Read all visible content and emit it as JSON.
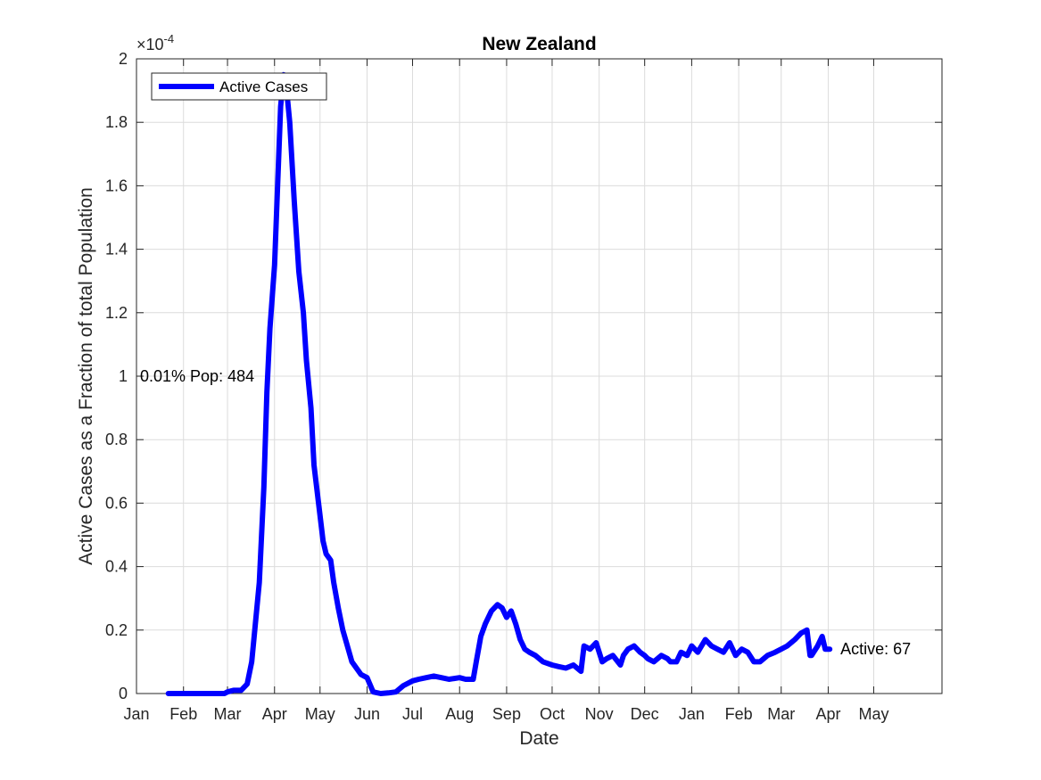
{
  "chart_data": {
    "type": "line",
    "title": "New Zealand",
    "xlabel": "Date",
    "ylabel": "Active Cases as a Fraction of total Population",
    "y_exponent_label": "×10",
    "y_exponent": "-4",
    "ylim": [
      0,
      2
    ],
    "yticks": [
      "0",
      "0.2",
      "0.4",
      "0.6",
      "0.8",
      "1",
      "1.2",
      "1.4",
      "1.6",
      "1.8",
      "2"
    ],
    "xticks": [
      "Jan",
      "Feb",
      "Mar",
      "Apr",
      "May",
      "Jun",
      "Jul",
      "Aug",
      "Sep",
      "Oct",
      "Nov",
      "Dec",
      "Jan",
      "Feb",
      "Mar",
      "Apr",
      "May"
    ],
    "xlim": [
      "2020-01-01",
      "2021-06-15"
    ],
    "grid": true,
    "legend_position": "top-left",
    "color": "#0000ff",
    "series": [
      {
        "name": "Active Cases",
        "x": [
          "2020-01-22",
          "2020-02-01",
          "2020-02-15",
          "2020-02-28",
          "2020-03-01",
          "2020-03-05",
          "2020-03-10",
          "2020-03-14",
          "2020-03-17",
          "2020-03-19",
          "2020-03-22",
          "2020-03-25",
          "2020-03-27",
          "2020-03-29",
          "2020-04-01",
          "2020-04-03",
          "2020-04-05",
          "2020-04-07",
          "2020-04-09",
          "2020-04-11",
          "2020-04-14",
          "2020-04-17",
          "2020-04-20",
          "2020-04-22",
          "2020-04-25",
          "2020-04-27",
          "2020-04-30",
          "2020-05-03",
          "2020-05-05",
          "2020-05-08",
          "2020-05-10",
          "2020-05-13",
          "2020-05-16",
          "2020-05-19",
          "2020-05-22",
          "2020-05-25",
          "2020-05-28",
          "2020-06-01",
          "2020-06-05",
          "2020-06-10",
          "2020-06-15",
          "2020-06-20",
          "2020-06-25",
          "2020-07-01",
          "2020-07-05",
          "2020-07-10",
          "2020-07-15",
          "2020-07-20",
          "2020-07-25",
          "2020-08-01",
          "2020-08-05",
          "2020-08-10",
          "2020-08-12",
          "2020-08-15",
          "2020-08-18",
          "2020-08-22",
          "2020-08-26",
          "2020-08-29",
          "2020-09-01",
          "2020-09-04",
          "2020-09-07",
          "2020-09-10",
          "2020-09-13",
          "2020-09-16",
          "2020-09-20",
          "2020-09-25",
          "2020-10-01",
          "2020-10-05",
          "2020-10-10",
          "2020-10-15",
          "2020-10-20",
          "2020-10-22",
          "2020-10-26",
          "2020-10-30",
          "2020-11-01",
          "2020-11-03",
          "2020-11-06",
          "2020-11-10",
          "2020-11-15",
          "2020-11-17",
          "2020-11-20",
          "2020-11-24",
          "2020-11-28",
          "2020-12-01",
          "2020-12-03",
          "2020-12-07",
          "2020-12-12",
          "2020-12-16",
          "2020-12-18",
          "2020-12-22",
          "2020-12-25",
          "2020-12-29",
          "2021-01-01",
          "2021-01-05",
          "2021-01-10",
          "2021-01-14",
          "2021-01-18",
          "2021-01-22",
          "2021-01-26",
          "2021-01-30",
          "2021-02-03",
          "2021-02-07",
          "2021-02-11",
          "2021-02-15",
          "2021-02-20",
          "2021-02-25",
          "2021-03-01",
          "2021-03-05",
          "2021-03-10",
          "2021-03-14",
          "2021-03-18",
          "2021-03-20",
          "2021-03-21",
          "2021-03-25",
          "2021-03-28",
          "2021-03-30",
          "2021-04-02"
        ],
        "y": [
          0,
          0,
          0,
          0,
          0.005,
          0.01,
          0.01,
          0.03,
          0.1,
          0.2,
          0.35,
          0.65,
          0.95,
          1.15,
          1.35,
          1.6,
          1.85,
          1.95,
          1.9,
          1.8,
          1.55,
          1.33,
          1.2,
          1.05,
          0.9,
          0.72,
          0.6,
          0.48,
          0.44,
          0.42,
          0.35,
          0.27,
          0.2,
          0.15,
          0.1,
          0.08,
          0.06,
          0.05,
          0.005,
          0.0,
          0.002,
          0.005,
          0.025,
          0.04,
          0.045,
          0.05,
          0.055,
          0.05,
          0.045,
          0.05,
          0.045,
          0.045,
          0.1,
          0.18,
          0.22,
          0.26,
          0.28,
          0.27,
          0.24,
          0.26,
          0.22,
          0.17,
          0.14,
          0.13,
          0.12,
          0.1,
          0.09,
          0.085,
          0.08,
          0.09,
          0.07,
          0.15,
          0.14,
          0.16,
          0.13,
          0.1,
          0.11,
          0.12,
          0.09,
          0.12,
          0.14,
          0.15,
          0.13,
          0.12,
          0.11,
          0.1,
          0.12,
          0.11,
          0.1,
          0.1,
          0.13,
          0.12,
          0.15,
          0.13,
          0.17,
          0.15,
          0.14,
          0.13,
          0.16,
          0.12,
          0.14,
          0.13,
          0.1,
          0.1,
          0.12,
          0.13,
          0.14,
          0.15,
          0.17,
          0.19,
          0.2,
          0.12,
          0.12,
          0.15,
          0.18,
          0.14,
          0.14
        ]
      }
    ],
    "annotations": [
      {
        "text": "0.01% Pop: 484",
        "x": "2020-01-01",
        "y": 1.0
      },
      {
        "text": "Active: 67",
        "x": "2021-04-02",
        "y": 0.14
      }
    ]
  }
}
